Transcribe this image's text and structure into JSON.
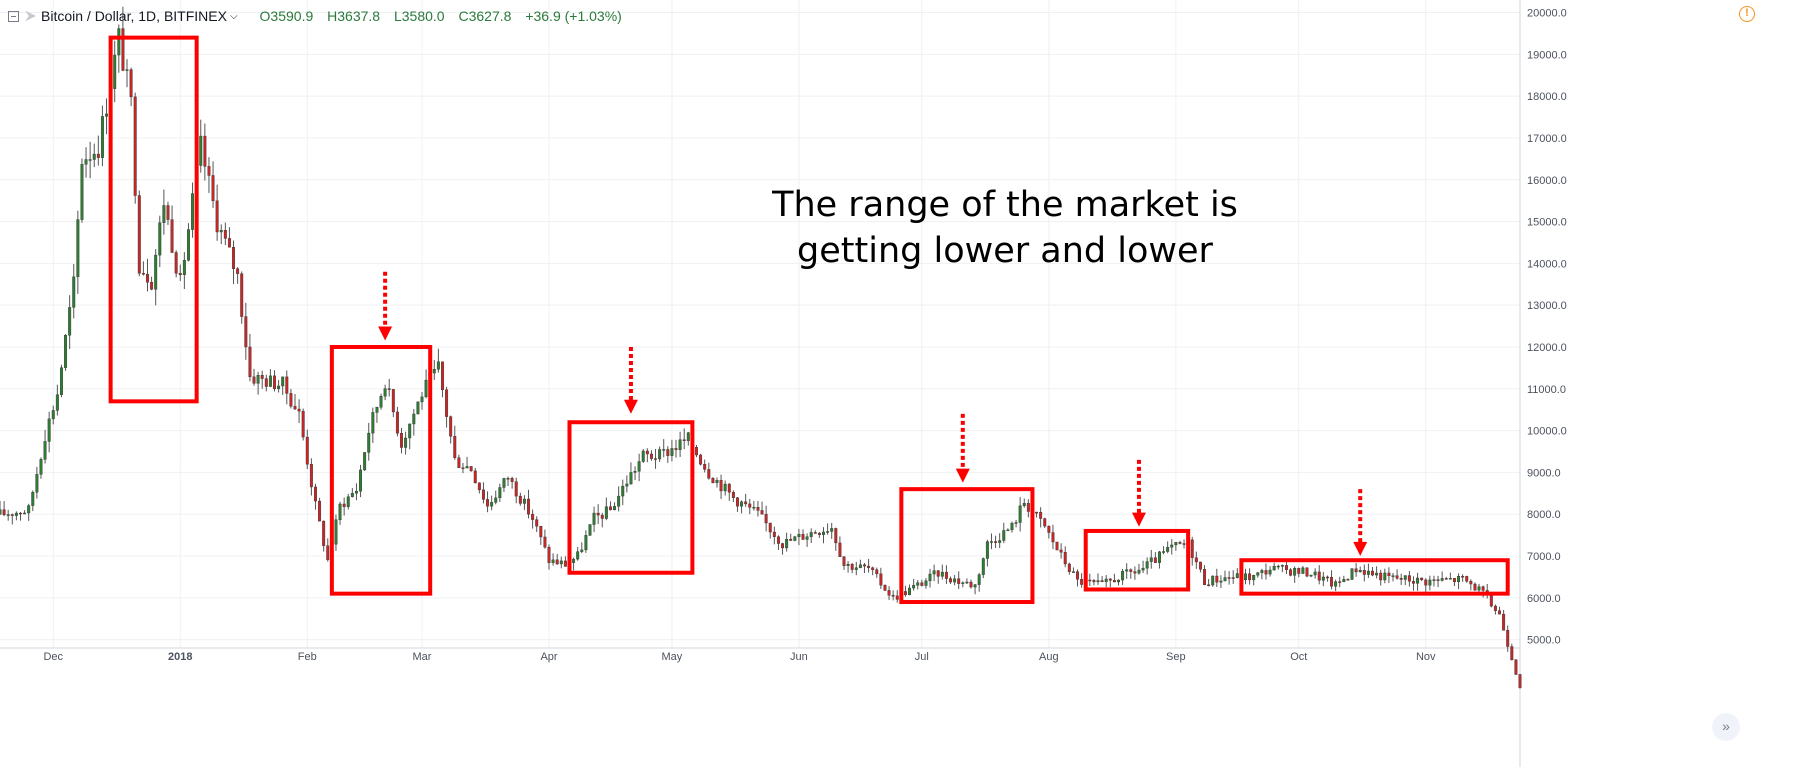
{
  "header": {
    "symbol": "Bitcoin / Dollar, 1D, BITFINEX",
    "open": "O3590.9",
    "high": "H3637.8",
    "low": "L3580.0",
    "close": "C3627.8",
    "change": "+36.9 (+1.03%)"
  },
  "annotation": {
    "line1": "The range of the market is",
    "line2": "getting lower and lower"
  },
  "icons": {
    "collapse": "collapse-icon",
    "symbol": "symbol-icon",
    "warning": "warning-icon",
    "scroll": "scroll-to-latest-icon"
  },
  "colors": {
    "up": "#2e7d32",
    "down": "#c62828",
    "highlight": "#ff0000",
    "grid": "#eef0f3"
  },
  "chart_data": {
    "type": "candlestick",
    "grid": true,
    "y_range": [
      4800,
      20300
    ],
    "y_ticks": [
      "5000.0",
      "6000.0",
      "7000.0",
      "8000.0",
      "9000.0",
      "10000.0",
      "11000.0",
      "12000.0",
      "13000.0",
      "14000.0",
      "15000.0",
      "16000.0",
      "17000.0",
      "18000.0",
      "19000.0",
      "20000.0"
    ],
    "x_range": [
      "2017-11-18",
      "2018-11-24"
    ],
    "x_ticks": [
      {
        "date": "2017-12-01",
        "label": "Dec"
      },
      {
        "date": "2018-01-01",
        "label": "2018"
      },
      {
        "date": "2018-02-01",
        "label": "Feb"
      },
      {
        "date": "2018-03-01",
        "label": "Mar"
      },
      {
        "date": "2018-04-01",
        "label": "Apr"
      },
      {
        "date": "2018-05-01",
        "label": "May"
      },
      {
        "date": "2018-06-01",
        "label": "Jun"
      },
      {
        "date": "2018-07-01",
        "label": "Jul"
      },
      {
        "date": "2018-08-01",
        "label": "Aug"
      },
      {
        "date": "2018-09-01",
        "label": "Sep"
      },
      {
        "date": "2018-10-01",
        "label": "Oct"
      },
      {
        "date": "2018-11-01",
        "label": "Nov"
      }
    ],
    "price_path": [
      [
        "2017-11-18",
        8000
      ],
      [
        "2017-11-25",
        8100
      ],
      [
        "2017-11-29",
        9900
      ],
      [
        "2017-12-02",
        10900
      ],
      [
        "2017-12-06",
        13500
      ],
      [
        "2017-12-08",
        16500
      ],
      [
        "2017-12-12",
        16800
      ],
      [
        "2017-12-17",
        19400
      ],
      [
        "2017-12-20",
        17800
      ],
      [
        "2017-12-22",
        14000
      ],
      [
        "2017-12-25",
        13600
      ],
      [
        "2017-12-28",
        15500
      ],
      [
        "2018-01-01",
        13500
      ],
      [
        "2018-01-06",
        16800
      ],
      [
        "2018-01-10",
        15000
      ],
      [
        "2018-01-15",
        13700
      ],
      [
        "2018-01-18",
        11300
      ],
      [
        "2018-01-22",
        11200
      ],
      [
        "2018-01-26",
        11100
      ],
      [
        "2018-01-30",
        10400
      ],
      [
        "2018-02-03",
        8200
      ],
      [
        "2018-02-06",
        6900
      ],
      [
        "2018-02-09",
        8200
      ],
      [
        "2018-02-13",
        8600
      ],
      [
        "2018-02-16",
        10000
      ],
      [
        "2018-02-20",
        11200
      ],
      [
        "2018-02-24",
        9700
      ],
      [
        "2018-03-01",
        10900
      ],
      [
        "2018-03-05",
        11500
      ],
      [
        "2018-03-09",
        9300
      ],
      [
        "2018-03-13",
        9100
      ],
      [
        "2018-03-17",
        8200
      ],
      [
        "2018-03-22",
        8900
      ],
      [
        "2018-03-28",
        7900
      ],
      [
        "2018-04-01",
        6900
      ],
      [
        "2018-04-05",
        6800
      ],
      [
        "2018-04-08",
        7000
      ],
      [
        "2018-04-12",
        7900
      ],
      [
        "2018-04-16",
        8100
      ],
      [
        "2018-04-20",
        8800
      ],
      [
        "2018-04-24",
        9400
      ],
      [
        "2018-04-28",
        9400
      ],
      [
        "2018-05-05",
        9800
      ],
      [
        "2018-05-10",
        9000
      ],
      [
        "2018-05-16",
        8400
      ],
      [
        "2018-05-22",
        8000
      ],
      [
        "2018-05-28",
        7300
      ],
      [
        "2018-06-05",
        7600
      ],
      [
        "2018-06-09",
        7700
      ],
      [
        "2018-06-12",
        6800
      ],
      [
        "2018-06-18",
        6700
      ],
      [
        "2018-06-24",
        6000
      ],
      [
        "2018-06-30",
        6300
      ],
      [
        "2018-07-05",
        6600
      ],
      [
        "2018-07-10",
        6400
      ],
      [
        "2018-07-14",
        6300
      ],
      [
        "2018-07-17",
        7300
      ],
      [
        "2018-07-23",
        7700
      ],
      [
        "2018-07-26",
        8300
      ],
      [
        "2018-07-31",
        7700
      ],
      [
        "2018-08-04",
        7000
      ],
      [
        "2018-08-08",
        6400
      ],
      [
        "2018-08-14",
        6300
      ],
      [
        "2018-08-18",
        6500
      ],
      [
        "2018-08-24",
        6700
      ],
      [
        "2018-08-31",
        7200
      ],
      [
        "2018-09-04",
        7300
      ],
      [
        "2018-09-08",
        6400
      ],
      [
        "2018-09-14",
        6500
      ],
      [
        "2018-09-20",
        6500
      ],
      [
        "2018-09-24",
        6700
      ],
      [
        "2018-10-04",
        6600
      ],
      [
        "2018-10-10",
        6300
      ],
      [
        "2018-10-15",
        6700
      ],
      [
        "2018-10-22",
        6500
      ],
      [
        "2018-11-01",
        6400
      ],
      [
        "2018-11-10",
        6450
      ],
      [
        "2018-11-14",
        6200
      ],
      [
        "2018-11-19",
        5600
      ],
      [
        "2018-11-24",
        3900
      ]
    ],
    "range_boxes": [
      {
        "start": "2017-12-15",
        "end": "2018-01-05",
        "low": 10700,
        "high": 19400
      },
      {
        "start": "2018-02-07",
        "end": "2018-03-03",
        "low": 6100,
        "high": 12000
      },
      {
        "start": "2018-04-06",
        "end": "2018-05-06",
        "low": 6600,
        "high": 10200
      },
      {
        "start": "2018-06-26",
        "end": "2018-07-28",
        "low": 5900,
        "high": 8600
      },
      {
        "start": "2018-08-10",
        "end": "2018-09-04",
        "low": 6200,
        "high": 7600
      },
      {
        "start": "2018-09-17",
        "end": "2018-11-21",
        "low": 6100,
        "high": 6900
      }
    ],
    "arrows": [
      {
        "date": "2018-02-20",
        "from": 13800,
        "to": 12250
      },
      {
        "date": "2018-04-21",
        "from": 12000,
        "to": 10500
      },
      {
        "date": "2018-07-11",
        "from": 10400,
        "to": 8850
      },
      {
        "date": "2018-08-23",
        "from": 9300,
        "to": 7800
      },
      {
        "date": "2018-10-16",
        "from": 8600,
        "to": 7100
      }
    ]
  }
}
